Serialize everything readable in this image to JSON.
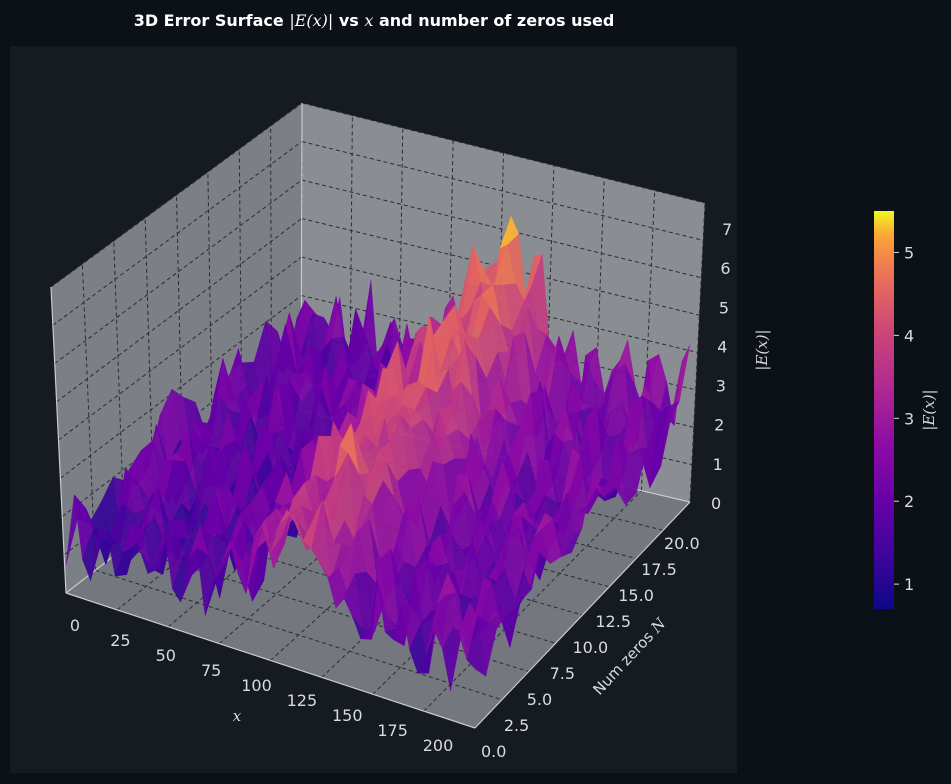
{
  "chart_data": {
    "type": "surface3d",
    "title_prefix": "3D Error Surface ",
    "title_math": "|E(x)|",
    "title_mid": " vs ",
    "title_var": "x",
    "title_suffix": " and number of zeros used",
    "x_label": "x",
    "y_label_prefix": "Num zeros ",
    "y_label_var": "N",
    "z_label": "|E(x)|",
    "colorbar_label": "|E(x)|",
    "x_ticks": [
      "0",
      "25",
      "50",
      "75",
      "100",
      "125",
      "150",
      "175",
      "200"
    ],
    "y_ticks": [
      "0.0",
      "2.5",
      "5.0",
      "7.5",
      "10.0",
      "12.5",
      "15.0",
      "17.5",
      "20.0"
    ],
    "z_ticks": [
      "0",
      "1",
      "2",
      "3",
      "4",
      "5",
      "6",
      "7"
    ],
    "colorbar_ticks": [
      "1",
      "2",
      "3",
      "4",
      "5"
    ],
    "x_range": [
      0,
      200
    ],
    "y_range": [
      0,
      20
    ],
    "z_range": [
      0,
      7
    ],
    "color_range": [
      0.7,
      5.5
    ],
    "colormap": "plasma",
    "grid": true,
    "surface_profile": {
      "x": [
        0,
        10,
        20,
        30,
        40,
        50,
        60,
        70,
        80,
        90,
        100,
        110,
        120,
        130,
        140,
        150,
        160,
        170,
        180,
        190,
        200
      ],
      "mean_error": [
        2.0,
        2.0,
        2.0,
        2.1,
        2.0,
        2.0,
        2.0,
        2.2,
        2.5,
        3.2,
        4.2,
        4.8,
        4.2,
        3.4,
        2.8,
        2.6,
        2.4,
        2.3,
        2.3,
        2.4,
        2.5
      ]
    }
  },
  "colors": {
    "figure_bg": "#0c1017",
    "axes_bg": "#161b22",
    "pane_color": "#8a8d92",
    "grid_color": "#2a2d33",
    "text_color": "#d8dbe0"
  }
}
